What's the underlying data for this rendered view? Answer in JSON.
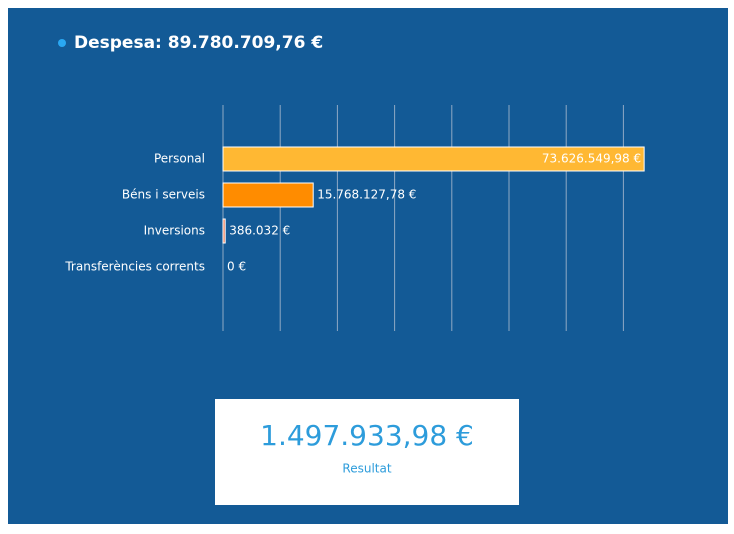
{
  "title": "Despesa: 89.780.709,76 €",
  "chart_data": {
    "type": "bar",
    "orientation": "horizontal",
    "categories": [
      "Personal",
      "Béns i serveis",
      "Inversions",
      "Transferències corrents"
    ],
    "values": [
      73626549.98,
      15768127.78,
      386032,
      0
    ],
    "value_labels": [
      "73.626.549,98 €",
      "15.768.127,78 €",
      "386.032 €",
      "0 €"
    ],
    "colors": [
      "#ffb833",
      "#ff8c00",
      "#f07f5a",
      "#e0e0e0"
    ],
    "xlim": [
      0,
      75000000
    ],
    "xticks": [
      0,
      10000000,
      20000000,
      30000000,
      40000000,
      50000000,
      60000000,
      70000000
    ],
    "grid": true
  },
  "summary": {
    "value": "1.497.933,98 €",
    "label": "Resultat"
  }
}
